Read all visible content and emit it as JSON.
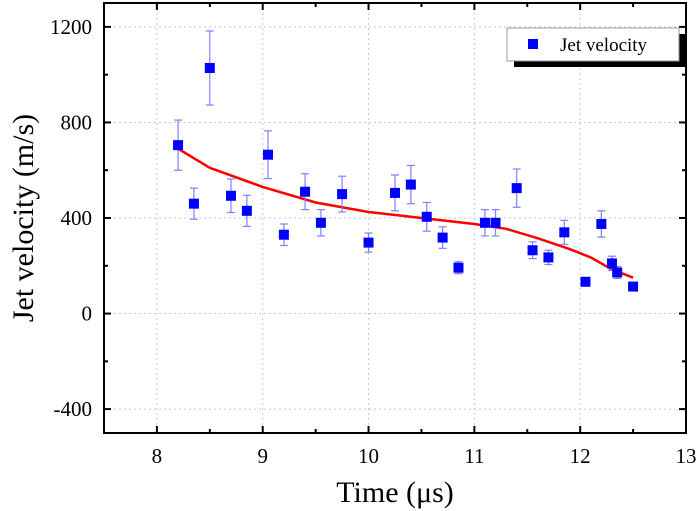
{
  "chart_data": {
    "type": "scatter",
    "title": "",
    "xlabel": "Time (μs)",
    "ylabel": "Jet velocity (m/s)",
    "xlim": [
      7.5,
      13
    ],
    "ylim": [
      -500,
      1300
    ],
    "xticks": [
      8,
      9,
      10,
      11,
      12,
      13
    ],
    "xtick_labels": [
      "8",
      "9",
      "10",
      "11",
      "12",
      "13"
    ],
    "xminor": [
      8.5,
      9.5,
      10.5,
      11.5,
      12.5
    ],
    "yticks": [
      -400,
      0,
      400,
      800,
      1200
    ],
    "ytick_labels": [
      "-400",
      "0",
      "400",
      "800",
      "1200"
    ],
    "yminor": [
      -200,
      200,
      600,
      1000
    ],
    "grid": true,
    "legend": {
      "position": "top-right",
      "entries": [
        "Jet velocity"
      ]
    },
    "colors": {
      "points": "#0000ff",
      "errorbars": "#8080ff",
      "fit": "#ff0000",
      "grid": "#c8c8c8"
    },
    "series": [
      {
        "name": "Jet velocity",
        "kind": "scatter-errorbar",
        "x": [
          8.2,
          8.35,
          8.5,
          8.7,
          8.85,
          9.05,
          9.2,
          9.4,
          9.55,
          9.75,
          10.0,
          10.25,
          10.4,
          10.55,
          10.7,
          10.85,
          11.1,
          11.2,
          11.4,
          11.55,
          11.7,
          11.85,
          12.05,
          12.2,
          12.3,
          12.35,
          12.5
        ],
        "y": [
          705,
          460,
          1028,
          493,
          430,
          665,
          330,
          510,
          380,
          500,
          297,
          505,
          540,
          405,
          318,
          192,
          380,
          380,
          525,
          265,
          235,
          340,
          133,
          375,
          210,
          172,
          113
        ],
        "yerr": [
          105,
          65,
          155,
          70,
          65,
          100,
          45,
          75,
          55,
          75,
          40,
          75,
          80,
          60,
          45,
          25,
          55,
          55,
          80,
          35,
          30,
          50,
          0,
          55,
          30,
          25,
          0
        ]
      },
      {
        "name": "Fit",
        "kind": "line",
        "x": [
          8.2,
          8.5,
          9.0,
          9.5,
          10.0,
          10.5,
          11.0,
          11.3,
          11.6,
          11.9,
          12.1,
          12.3,
          12.5
        ],
        "y": [
          690,
          610,
          530,
          465,
          425,
          400,
          375,
          355,
          315,
          270,
          235,
          185,
          150
        ]
      }
    ]
  }
}
